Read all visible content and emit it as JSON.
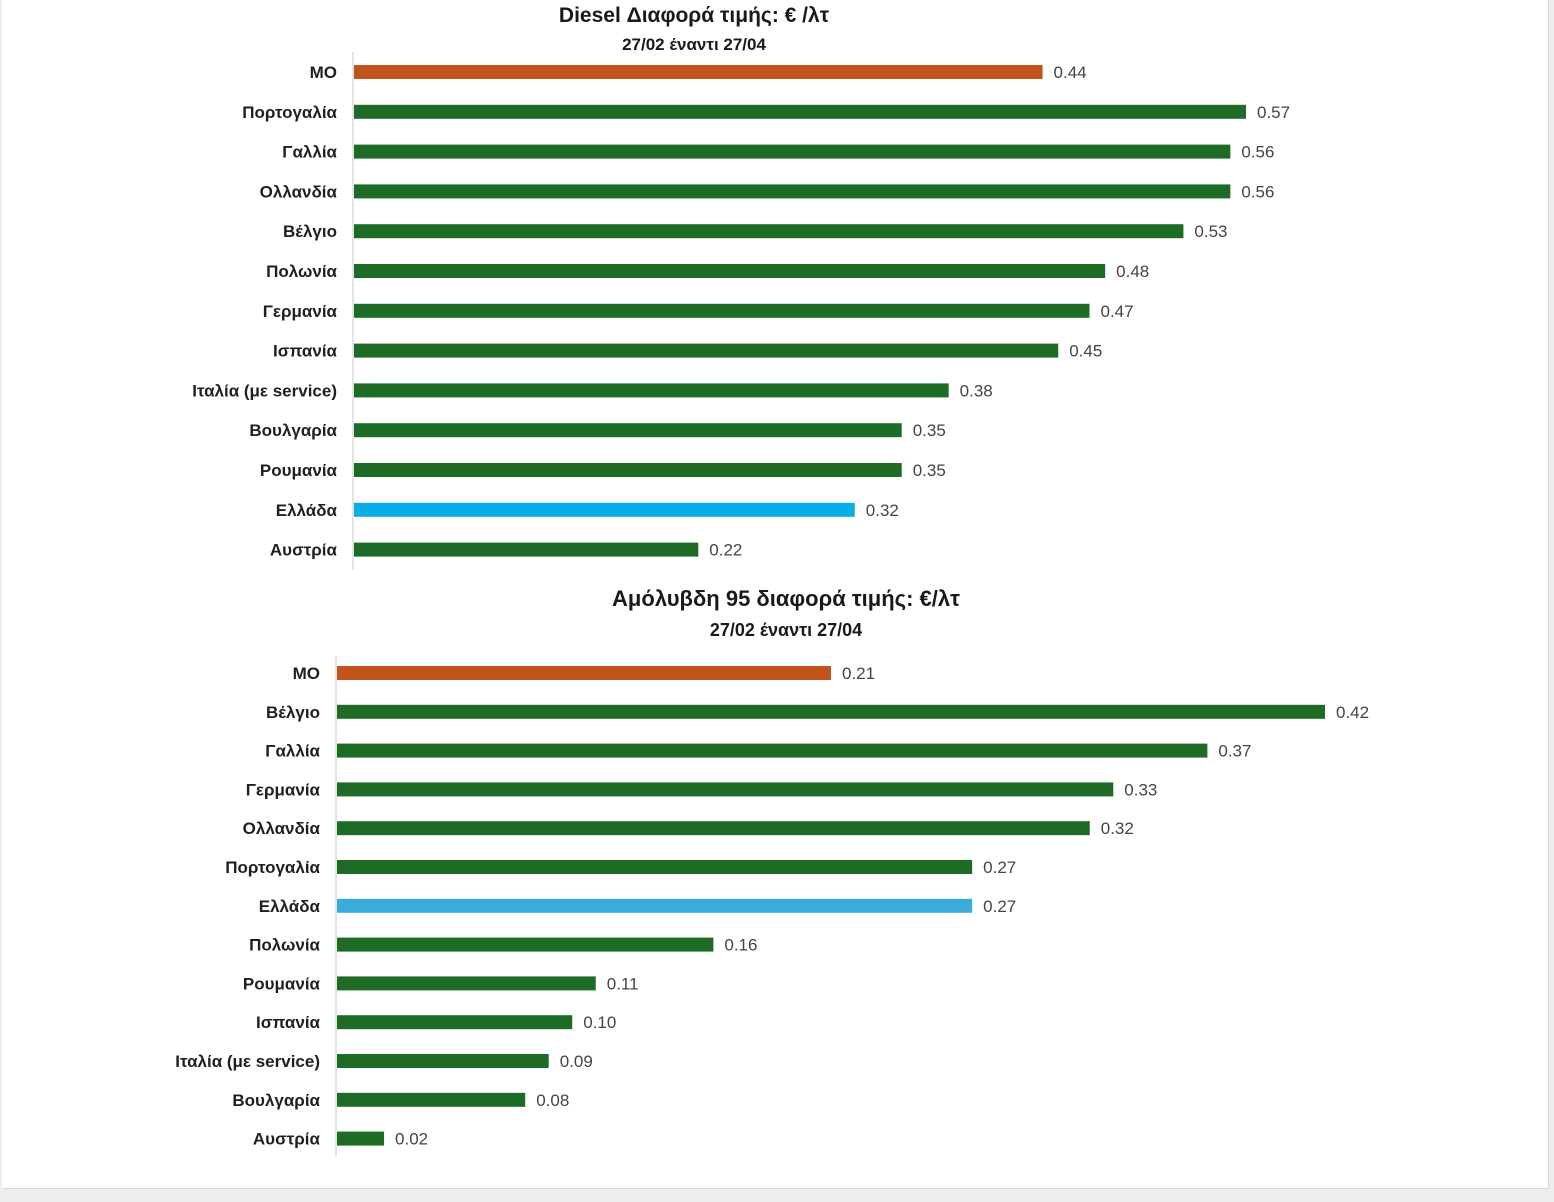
{
  "colors": {
    "green": "#1e6b26",
    "orange": "#c1541b",
    "blue_diesel": "#0aaee6",
    "blue_petrol": "#3aabdb",
    "axis": "#c8c8c8"
  },
  "chart_data": [
    {
      "type": "bar",
      "orientation": "horizontal",
      "title": "Diesel Διαφορά τιμής: € /λτ",
      "subtitle": "27/02 έναντι 27/04",
      "categories": [
        "ΜΟ",
        "Πορτογαλία",
        "Γαλλία",
        "Ολλανδία",
        "Βέλγιο",
        "Πολωνία",
        "Γερμανία",
        "Ισπανία",
        "Ιταλία (με service)",
        "Βουλγαρία",
        "Ρουμανία",
        "Ελλάδα",
        "Αυστρία"
      ],
      "values": [
        0.44,
        0.57,
        0.56,
        0.56,
        0.53,
        0.48,
        0.47,
        0.45,
        0.38,
        0.35,
        0.35,
        0.32,
        0.22
      ],
      "labels": [
        "0.44",
        "0.57",
        "0.56",
        "0.56",
        "0.53",
        "0.48",
        "0.47",
        "0.45",
        "0.38",
        "0.35",
        "0.35",
        "0.32",
        "0.22"
      ],
      "highlight": {
        "ΜΟ": "orange",
        "Ελλάδα": "blue_diesel"
      },
      "xlim": [
        0,
        0.57
      ],
      "grid": false,
      "legend": "none"
    },
    {
      "type": "bar",
      "orientation": "horizontal",
      "title": "Αμόλυβδη 95 διαφορά τιμής: €/λτ",
      "subtitle": "27/02 έναντι 27/04",
      "categories": [
        "ΜΟ",
        "Βέλγιο",
        "Γαλλία",
        "Γερμανία",
        "Ολλανδία",
        "Πορτογαλία",
        "Ελλάδα",
        "Πολωνία",
        "Ρουμανία",
        "Ισπανία",
        "Ιταλία (με service)",
        "Βουλγαρία",
        "Αυστρία"
      ],
      "values": [
        0.21,
        0.42,
        0.37,
        0.33,
        0.32,
        0.27,
        0.27,
        0.16,
        0.11,
        0.1,
        0.09,
        0.08,
        0.02
      ],
      "labels": [
        "0.21",
        "0.42",
        "0.37",
        "0.33",
        "0.32",
        "0.27",
        "0.27",
        "0.16",
        "0.11",
        "0.10",
        "0.09",
        "0.08",
        "0.02"
      ],
      "highlight": {
        "ΜΟ": "orange",
        "Ελλάδα": "blue_petrol"
      },
      "xlim": [
        0,
        0.42
      ],
      "grid": false,
      "legend": "none"
    }
  ]
}
